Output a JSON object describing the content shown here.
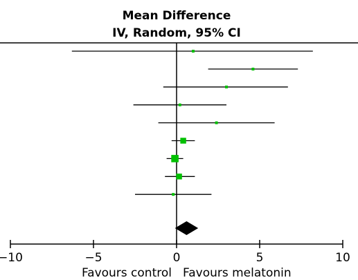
{
  "chart_data": {
    "type": "forest",
    "header_line1": "Mean Difference",
    "header_line2": "IV, Random, 95% CI",
    "xlim": [
      -10,
      10
    ],
    "ticks": [
      -10,
      -5,
      0,
      5,
      10
    ],
    "tick_labels": [
      "−10",
      "−5",
      "0",
      "5",
      "10"
    ],
    "favours_left": "Favours control",
    "favours_right": "Favours melatonin",
    "studies": [
      {
        "mean": 1.0,
        "ci_low": -6.3,
        "ci_high": 8.2,
        "weight": 1
      },
      {
        "mean": 4.6,
        "ci_low": 1.9,
        "ci_high": 7.3,
        "weight": 1
      },
      {
        "mean": 3.0,
        "ci_low": -0.8,
        "ci_high": 6.7,
        "weight": 1
      },
      {
        "mean": 0.2,
        "ci_low": -2.6,
        "ci_high": 3.0,
        "weight": 1
      },
      {
        "mean": 2.4,
        "ci_low": -1.1,
        "ci_high": 5.9,
        "weight": 1
      },
      {
        "mean": 0.4,
        "ci_low": -0.3,
        "ci_high": 1.1,
        "weight": 3
      },
      {
        "mean": -0.1,
        "ci_low": -0.6,
        "ci_high": 0.4,
        "weight": 4
      },
      {
        "mean": 0.15,
        "ci_low": -0.7,
        "ci_high": 1.1,
        "weight": 3
      },
      {
        "mean": -0.2,
        "ci_low": -2.5,
        "ci_high": 2.1,
        "weight": 1
      }
    ],
    "pooled": {
      "mean": 0.6,
      "ci_low": -0.1,
      "ci_high": 1.3
    },
    "colors": {
      "marker": "#00c000",
      "line": "#000000",
      "diamond": "#000000"
    }
  }
}
